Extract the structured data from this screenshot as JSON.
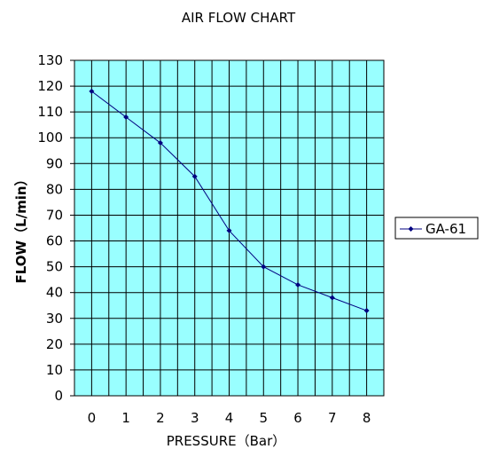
{
  "chart_data": {
    "type": "line",
    "title": "AIR FLOW CHART",
    "xlabel": "PRESSURE（Bar）",
    "ylabel": "FLOW（L/min）",
    "x": [
      0,
      1,
      2,
      3,
      4,
      5,
      6,
      7,
      8
    ],
    "xlim": [
      -0.5,
      8.5
    ],
    "ylim": [
      0,
      130
    ],
    "yticks": [
      0,
      10,
      20,
      30,
      40,
      50,
      60,
      70,
      80,
      90,
      100,
      110,
      120,
      130
    ],
    "grid": true,
    "legend": "right",
    "plot_background": "#99FFFF",
    "series": [
      {
        "name": "GA-61",
        "color": "#000080",
        "values": [
          118,
          108,
          98,
          85,
          64,
          50,
          43,
          38,
          33
        ]
      }
    ]
  }
}
